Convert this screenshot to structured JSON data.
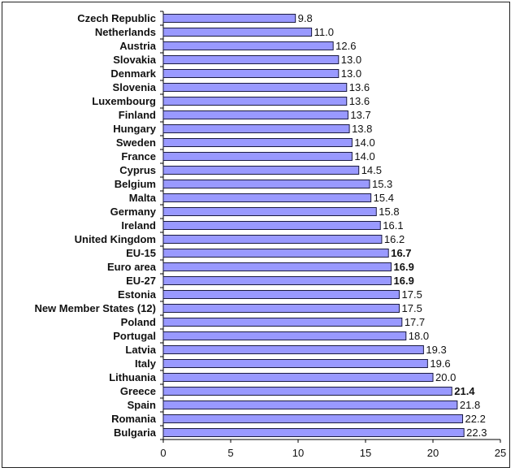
{
  "chart_data": {
    "type": "bar",
    "orientation": "horizontal",
    "categories": [
      "Czech Republic",
      "Netherlands",
      "Austria",
      "Slovakia",
      "Denmark",
      "Slovenia",
      "Luxembourg",
      "Finland",
      "Hungary",
      "Sweden",
      "France",
      "Cyprus",
      "Belgium",
      "Malta",
      "Germany",
      "Ireland",
      "United Kingdom",
      "EU-15",
      "Euro area",
      "EU-27",
      "Estonia",
      "New Member States (12)",
      "Poland",
      "Portugal",
      "Latvia",
      "Italy",
      "Lithuania",
      "Greece",
      "Spain",
      "Romania",
      "Bulgaria"
    ],
    "values": [
      9.8,
      11.0,
      12.6,
      13.0,
      13.0,
      13.6,
      13.6,
      13.7,
      13.8,
      14.0,
      14.0,
      14.5,
      15.3,
      15.4,
      15.8,
      16.1,
      16.2,
      16.7,
      16.9,
      16.9,
      17.5,
      17.5,
      17.7,
      18.0,
      19.3,
      19.6,
      20.0,
      21.4,
      21.8,
      22.2,
      22.3
    ],
    "value_labels": [
      "9.8",
      "11.0",
      "12.6",
      "13.0",
      "13.0",
      "13.6",
      "13.6",
      "13.7",
      "13.8",
      "14.0",
      "14.0",
      "14.5",
      "15.3",
      "15.4",
      "15.8",
      "16.1",
      "16.2",
      "16.7",
      "16.9",
      "16.9",
      "17.5",
      "17.5",
      "17.7",
      "18.0",
      "19.3",
      "19.6",
      "20.0",
      "21.4",
      "21.8",
      "22.2",
      "22.3"
    ],
    "bold_value_indices": [
      17,
      18,
      19,
      27
    ],
    "xticks": [
      "0",
      "5",
      "10",
      "15",
      "20",
      "25"
    ],
    "xlim": [
      0,
      25
    ],
    "title": "",
    "xlabel": "",
    "ylabel": "",
    "bar_color": "#9999ff",
    "bar_edge": "#1a1a40"
  }
}
